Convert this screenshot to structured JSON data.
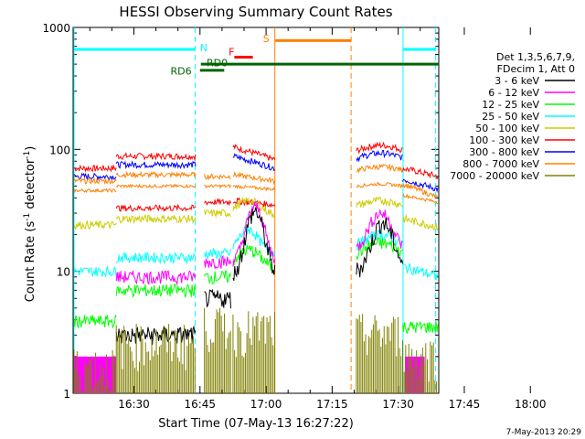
{
  "chart_data": {
    "type": "line",
    "title": "HESSI Observing Summary Count Rates",
    "xlabel": "Start Time (07-May-13 16:27:22)",
    "ylabel_main": "Count Rate (s",
    "ylabel_sup1": "-1",
    "ylabel_mid": " detector",
    "ylabel_sup2": "-1",
    "ylabel_end": ")",
    "y_scale": "log",
    "ylim": [
      1,
      1000
    ],
    "xlim_minutes": [
      16.2,
      99.2
    ],
    "x_ticks": [
      "16:30",
      "16:45",
      "17:00",
      "17:15",
      "17:30",
      "17:45",
      "18:00"
    ],
    "y_ticks": [
      "1",
      "10",
      "100",
      "1000"
    ],
    "legend_header": [
      "Det 1,3,5,6,7,9,",
      "FDecim 1, Att 0"
    ],
    "series": [
      {
        "name": "3 - 6 keV",
        "color": "#000000"
      },
      {
        "name": "6 - 12 keV",
        "color": "#ff00ff"
      },
      {
        "name": "12 - 25 keV",
        "color": "#00ff00"
      },
      {
        "name": "25 - 50 keV",
        "color": "#00ffff"
      },
      {
        "name": "50 - 100 keV",
        "color": "#cccc00"
      },
      {
        "name": "100 - 300 keV",
        "color": "#ff0000"
      },
      {
        "name": "300 - 800 keV",
        "color": "#0000ff"
      },
      {
        "name": "800 - 7000 keV",
        "color": "#ff8000"
      },
      {
        "name": "7000 - 20000 keV",
        "color": "#808000"
      }
    ],
    "flags": [
      {
        "label": "N",
        "color": "#00ffff"
      },
      {
        "label": "F",
        "color": "#ff0000"
      },
      {
        "label": "S",
        "color": "#ff8000"
      },
      {
        "label": "RD0",
        "color": "#006400"
      },
      {
        "label": "RD6",
        "color": "#006400"
      }
    ],
    "timestamp": "7-May-2013 20:29"
  }
}
